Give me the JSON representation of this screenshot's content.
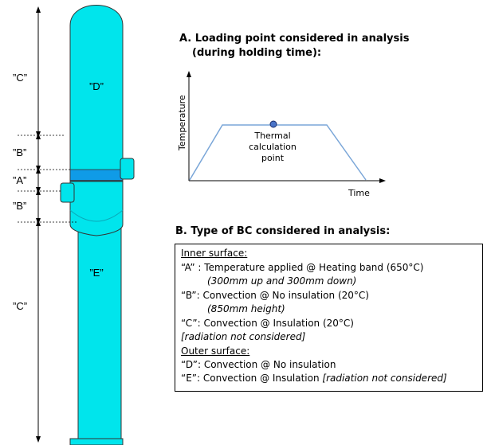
{
  "section_a": {
    "heading_line1": "A. Loading point considered in analysis",
    "heading_line2": "(during holding time):"
  },
  "section_b": {
    "heading": "B. Type of BC considered in analysis:"
  },
  "loading_chart": {
    "y_axis_label": "Temperature",
    "x_axis_label": "Time",
    "marker_label": [
      "Thermal",
      "calculation",
      "point"
    ]
  },
  "vessel": {
    "zone_labels": {
      "d": "”D”",
      "e": "”E”"
    },
    "dimension_labels": {
      "c_top": "”C”",
      "b_upper": "”B”",
      "a": "”A”",
      "b_lower": "”B”",
      "c_bottom": "”C”"
    },
    "colors": {
      "shell": "#00e5ec",
      "band": "#0f9be7",
      "outline": "#333333"
    }
  },
  "boundary_conditions": {
    "inner_heading": "Inner surface:",
    "inner_a": "“A” : Temperature applied @ Heating band (650°C)",
    "inner_a_note": "(300mm up and 300mm down)",
    "inner_b": "“B”: Convection @ No insulation (20°C)",
    "inner_b_note": "(850mm height)",
    "inner_c": "“C”: Convection @ Insulation (20°C)",
    "inner_c_note": "[radiation not considered]",
    "outer_heading": "Outer surface:",
    "outer_d": "“D”: Convection @ No insulation",
    "outer_e": "“E”: Convection @ Insulation ",
    "outer_e_note": "[radiation not considered]"
  }
}
